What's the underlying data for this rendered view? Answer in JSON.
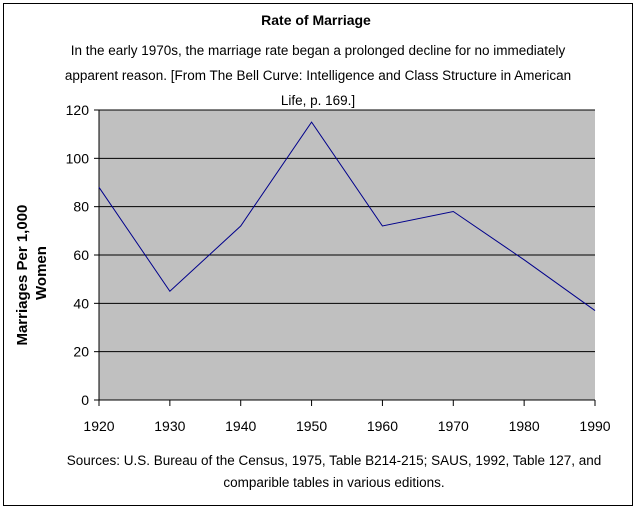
{
  "chart_data": {
    "type": "line",
    "title": "Rate of Marriage",
    "subtitle": "In the early 1970s, the marriage rate began a prolonged decline for no immediately apparent reason. [From The Bell Curve: Intelligence and Class Structure in American Life, p. 169.]",
    "ylabel": [
      "Marriages Per 1,000",
      "Women"
    ],
    "xlabel": "",
    "x": [
      1920,
      1930,
      1940,
      1950,
      1960,
      1970,
      1980,
      1990
    ],
    "series": [
      {
        "values": [
          88,
          45,
          72,
          115,
          72,
          78,
          58,
          37
        ],
        "color": "#00008B"
      }
    ],
    "xlim": [
      1920,
      1990
    ],
    "ylim": [
      0,
      120
    ],
    "yticks": [
      0,
      20,
      40,
      60,
      80,
      100,
      120
    ],
    "xticks": [
      1920,
      1930,
      1940,
      1950,
      1960,
      1970,
      1980,
      1990
    ],
    "grid": true,
    "plot_background": "#C0C0C0",
    "sources": "Sources: U.S. Bureau of the Census, 1975, Table B214-215; SAUS, 1992, Table 127, and comparible tables in various editions."
  }
}
